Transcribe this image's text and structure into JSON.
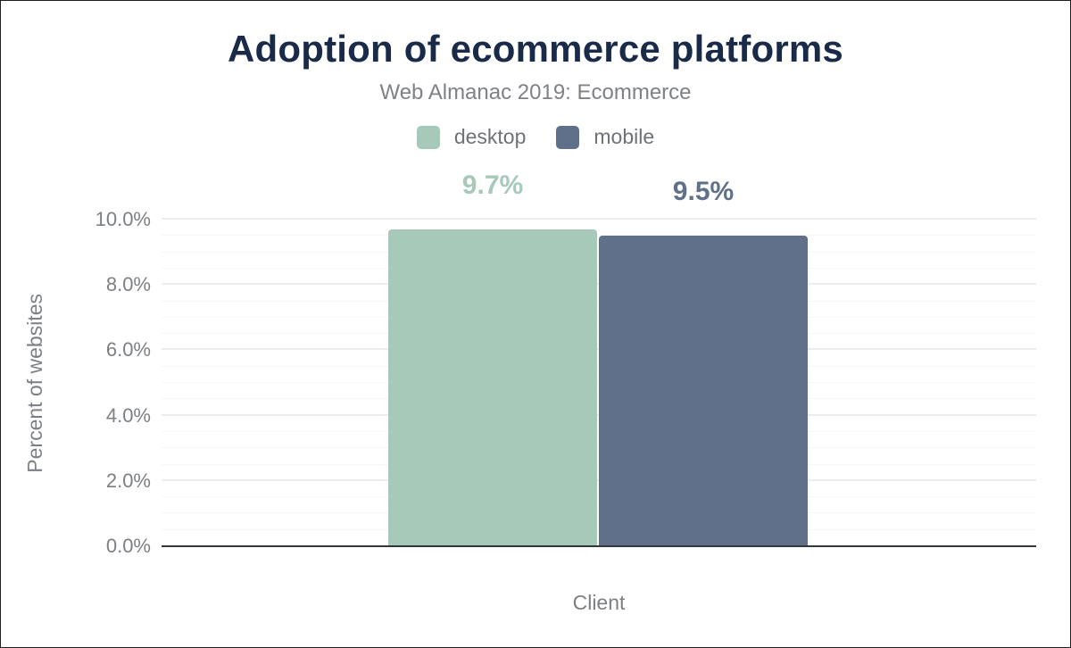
{
  "colors": {
    "title_text": "#1a2b49",
    "secondary_text": "#7c8084",
    "axis_line": "#32373c",
    "desktop_green": "#a6c9b9",
    "mobile_slate": "#60708a"
  },
  "chart_data": {
    "type": "bar",
    "title": "Adoption of ecommerce platforms",
    "subtitle": "Web Almanac 2019: Ecommerce",
    "categories": [
      "Client"
    ],
    "series": [
      {
        "name": "desktop",
        "values": [
          9.7
        ],
        "data_labels": [
          "9.7%"
        ],
        "color": "#a6c9b9"
      },
      {
        "name": "mobile",
        "values": [
          9.5
        ],
        "data_labels": [
          "9.5%"
        ],
        "color": "#60708a"
      }
    ],
    "xlabel": "Client",
    "ylabel": "Percent of websites",
    "ylim": [
      0,
      10
    ],
    "yticks": [
      {
        "value": 0,
        "label": "0.0%"
      },
      {
        "value": 2,
        "label": "2.0%"
      },
      {
        "value": 4,
        "label": "4.0%"
      },
      {
        "value": 6,
        "label": "6.0%"
      },
      {
        "value": 8,
        "label": "8.0%"
      },
      {
        "value": 10,
        "label": "10.0%"
      }
    ],
    "grid": {
      "major_every": 2,
      "minor_every": 0.5,
      "orientation": "horizontal"
    },
    "legend_position": "top"
  }
}
